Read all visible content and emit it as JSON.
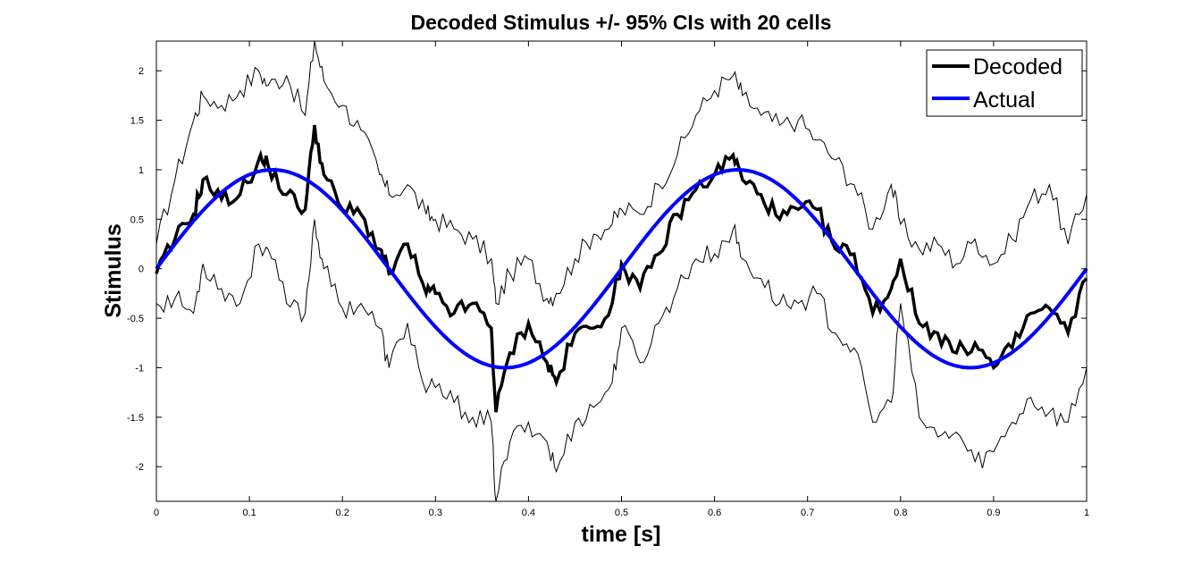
{
  "chart_data": {
    "type": "line",
    "title": "Decoded Stimulus +/- 95% CIs with 20 cells",
    "xlabel": "time [s]",
    "ylabel": "Stimulus",
    "xlim": [
      0,
      1
    ],
    "ylim": [
      -2.35,
      2.3
    ],
    "xticks": [
      0,
      0.1,
      0.2,
      0.3,
      0.4,
      0.5,
      0.6,
      0.7,
      0.8,
      0.9,
      1
    ],
    "xtick_labels": [
      "0",
      "0.1",
      "0.2",
      "0.3",
      "0.4",
      "0.5",
      "0.6",
      "0.7",
      "0.8",
      "0.9",
      "1"
    ],
    "yticks": [
      -2,
      -1.5,
      -1,
      -0.5,
      0,
      0.5,
      1,
      1.5,
      2
    ],
    "ytick_labels": [
      "-2",
      "-1.5",
      "-1",
      "-0.5",
      "0",
      "0.5",
      "1",
      "1.5",
      "2"
    ],
    "grid": false,
    "legend_position": "top-right",
    "x": [
      0,
      0.02,
      0.04,
      0.05,
      0.07,
      0.09,
      0.11,
      0.12,
      0.14,
      0.16,
      0.17,
      0.18,
      0.2,
      0.22,
      0.24,
      0.25,
      0.27,
      0.29,
      0.3,
      0.32,
      0.34,
      0.36,
      0.365,
      0.38,
      0.4,
      0.42,
      0.43,
      0.45,
      0.47,
      0.49,
      0.5,
      0.52,
      0.54,
      0.56,
      0.58,
      0.6,
      0.62,
      0.63,
      0.65,
      0.67,
      0.69,
      0.71,
      0.73,
      0.75,
      0.77,
      0.79,
      0.8,
      0.82,
      0.84,
      0.86,
      0.88,
      0.9,
      0.92,
      0.94,
      0.96,
      0.98,
      1
    ],
    "series": [
      {
        "name": "Decoded",
        "color": "#000000",
        "values": [
          -0.05,
          0.3,
          0.55,
          0.9,
          0.7,
          0.75,
          1.1,
          1.05,
          0.75,
          0.6,
          1.45,
          0.95,
          0.6,
          0.55,
          0.2,
          -0.05,
          0.25,
          -0.25,
          -0.25,
          -0.45,
          -0.35,
          -0.6,
          -1.45,
          -0.85,
          -0.55,
          -0.95,
          -1.15,
          -0.65,
          -0.6,
          -0.35,
          0.05,
          -0.2,
          0.15,
          0.55,
          0.8,
          0.95,
          1.15,
          0.9,
          0.75,
          0.5,
          0.6,
          0.6,
          0.2,
          0.15,
          -0.45,
          -0.2,
          0.1,
          -0.55,
          -0.65,
          -0.85,
          -0.75,
          -1.0,
          -0.8,
          -0.45,
          -0.4,
          -0.65,
          -0.1
        ]
      },
      {
        "name": "Actual",
        "color": "#0000ff",
        "function": "sin(4*pi*t)"
      },
      {
        "name": "",
        "role": "upper CI",
        "color": "#000000",
        "values": [
          0.25,
          0.9,
          1.5,
          1.75,
          1.65,
          1.8,
          2.0,
          1.85,
          1.95,
          1.55,
          2.3,
          1.9,
          1.65,
          1.4,
          0.95,
          0.75,
          0.85,
          0.55,
          0.5,
          0.4,
          0.3,
          0.1,
          -0.35,
          -0.05,
          0.1,
          -0.3,
          -0.25,
          0.1,
          0.35,
          0.45,
          0.6,
          0.55,
          0.85,
          1.15,
          1.55,
          1.8,
          1.95,
          1.75,
          1.55,
          1.45,
          1.5,
          1.3,
          1.1,
          0.85,
          0.4,
          0.85,
          0.45,
          0.2,
          0.25,
          0.05,
          0.3,
          0.05,
          0.3,
          0.7,
          0.85,
          0.25,
          0.75
        ]
      },
      {
        "name": "",
        "role": "lower CI",
        "color": "#000000",
        "values": [
          -0.35,
          -0.3,
          -0.45,
          0.05,
          -0.2,
          -0.35,
          0.25,
          0.2,
          -0.35,
          -0.45,
          0.5,
          0.0,
          -0.4,
          -0.35,
          -0.6,
          -1.0,
          -0.55,
          -1.25,
          -1.2,
          -1.35,
          -1.5,
          -1.55,
          -2.35,
          -1.75,
          -1.55,
          -1.75,
          -2.05,
          -1.55,
          -1.4,
          -1.15,
          -0.6,
          -0.95,
          -0.55,
          -0.2,
          0.1,
          0.15,
          0.4,
          0.1,
          -0.1,
          -0.35,
          -0.35,
          -0.25,
          -0.65,
          -0.8,
          -1.55,
          -1.35,
          -0.35,
          -1.5,
          -1.7,
          -1.65,
          -1.95,
          -1.85,
          -1.55,
          -1.3,
          -1.45,
          -1.55,
          -1.0
        ]
      }
    ]
  }
}
